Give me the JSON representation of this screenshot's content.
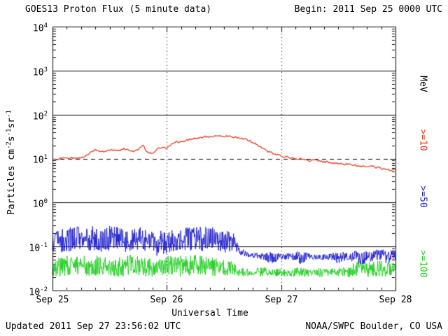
{
  "header": {
    "title": "GOES13 Proton Flux (5 minute data)",
    "begin_label": "Begin: 2011 Sep 25 0000 UTC"
  },
  "footer": {
    "updated": "Updated 2011 Sep 27 23:56:02 UTC",
    "credit": "NOAA/SWPC Boulder, CO USA"
  },
  "axes": {
    "x_label": "Universal Time",
    "y_label": {
      "p1": "Particles cm",
      "s1": "-2",
      "p2": "s",
      "s2": "-1",
      "p3": "sr",
      "s3": "-1"
    }
  },
  "right_labels": {
    "units": "MeV",
    "items": [
      ">=10",
      ">=50",
      ">=100"
    ]
  },
  "chart_data": {
    "type": "line",
    "title": "GOES13 Proton Flux (5 minute data)",
    "begin": "2011 Sep 25 0000 UTC",
    "xlabel": "Universal Time",
    "ylabel": "Particles cm-2 s-1 sr-1",
    "xlim_hours": [
      0,
      72
    ],
    "x_tick_labels": [
      "Sep 25",
      "Sep 26",
      "Sep 27",
      "Sep 28"
    ],
    "x_major_tick_hours": [
      0,
      24,
      48,
      72
    ],
    "x_minor_tick_step_hours": 3,
    "ylim": [
      0.01,
      10000
    ],
    "y_ticks": [
      {
        "base": "10",
        "sup": "4"
      },
      {
        "base": "10",
        "sup": "3"
      },
      {
        "base": "10",
        "sup": "2"
      },
      {
        "base": "10",
        "sup": "1"
      },
      {
        "base": "10",
        "sup": "0"
      },
      {
        "base": "10",
        "sup": "-1"
      },
      {
        "base": "10",
        "sup": "-2"
      }
    ],
    "y_gridlines_solid_exponents": [
      3,
      2,
      0,
      -1
    ],
    "y_gridlines_dashed_exponents": [
      1
    ],
    "vertical_gridlines_hours": [
      24,
      48
    ],
    "legend_position": "right-edge-rotated",
    "grid": "partial",
    "series": [
      {
        "name": ">=10 MeV",
        "color": "#e03a21",
        "points": [
          [
            0,
            9.5
          ],
          [
            1,
            9.8
          ],
          [
            2,
            10.2
          ],
          [
            3,
            9.9
          ],
          [
            4,
            10.3
          ],
          [
            5,
            10.0
          ],
          [
            6,
            10.4
          ],
          [
            7,
            11.5
          ],
          [
            8,
            14.0
          ],
          [
            9,
            15.5
          ],
          [
            10,
            15.0
          ],
          [
            11,
            14.5
          ],
          [
            12,
            15.5
          ],
          [
            13,
            16.0
          ],
          [
            14,
            15.2
          ],
          [
            15,
            16.5
          ],
          [
            16,
            15.8
          ],
          [
            17,
            14.8
          ],
          [
            18,
            16.0
          ],
          [
            19,
            19.5
          ],
          [
            20,
            13.5
          ],
          [
            21,
            13.0
          ],
          [
            22,
            16.5
          ],
          [
            23,
            18.0
          ],
          [
            24,
            17.0
          ],
          [
            25,
            21.0
          ],
          [
            26,
            24.5
          ],
          [
            27,
            23.5
          ],
          [
            28,
            26.0
          ],
          [
            29,
            27.5
          ],
          [
            30,
            29.0
          ],
          [
            31,
            30.5
          ],
          [
            32,
            31.5
          ],
          [
            33,
            30.5
          ],
          [
            34,
            32.0
          ],
          [
            35,
            33.0
          ],
          [
            36,
            32.5
          ],
          [
            37,
            31.5
          ],
          [
            38,
            30.5
          ],
          [
            39,
            30.0
          ],
          [
            40,
            28.5
          ],
          [
            41,
            26.5
          ],
          [
            42,
            24.0
          ],
          [
            43,
            20.5
          ],
          [
            44,
            17.5
          ],
          [
            45,
            15.0
          ],
          [
            46,
            13.5
          ],
          [
            47,
            12.5
          ],
          [
            48,
            11.5
          ],
          [
            49,
            10.8
          ],
          [
            50,
            10.2
          ],
          [
            51,
            9.8
          ],
          [
            52,
            10.0
          ],
          [
            53,
            9.4
          ],
          [
            54,
            9.0
          ],
          [
            55,
            9.3
          ],
          [
            56,
            8.7
          ],
          [
            57,
            8.4
          ],
          [
            58,
            8.2
          ],
          [
            59,
            8.0
          ],
          [
            60,
            7.7
          ],
          [
            61,
            7.4
          ],
          [
            62,
            7.6
          ],
          [
            63,
            7.2
          ],
          [
            64,
            7.0
          ],
          [
            65,
            6.7
          ],
          [
            66,
            6.5
          ],
          [
            67,
            6.8
          ],
          [
            68,
            6.3
          ],
          [
            69,
            6.0
          ],
          [
            70,
            5.7
          ],
          [
            71,
            5.4
          ],
          [
            72,
            5.9
          ]
        ]
      },
      {
        "name": ">=50 MeV",
        "color": "#2121cd",
        "envelope_step_hours": 2,
        "env_min": [
          0.08,
          0.07,
          0.08,
          0.09,
          0.08,
          0.07,
          0.08,
          0.08,
          0.07,
          0.08,
          0.07,
          0.06,
          0.07,
          0.08,
          0.08,
          0.07,
          0.08,
          0.08,
          0.07,
          0.08,
          0.06,
          0.055,
          0.05,
          0.04,
          0.05,
          0.05,
          0.04,
          0.05,
          0.05,
          0.05,
          0.04,
          0.05,
          0.04,
          0.04,
          0.05,
          0.04,
          0.05
        ],
        "env_max": [
          0.2,
          0.25,
          0.3,
          0.28,
          0.3,
          0.25,
          0.3,
          0.28,
          0.25,
          0.3,
          0.28,
          0.22,
          0.25,
          0.3,
          0.28,
          0.3,
          0.28,
          0.3,
          0.25,
          0.2,
          0.09,
          0.075,
          0.07,
          0.08,
          0.07,
          0.07,
          0.08,
          0.07,
          0.065,
          0.07,
          0.08,
          0.07,
          0.09,
          0.08,
          0.09,
          0.09,
          0.08
        ]
      },
      {
        "name": ">=100 MeV",
        "color": "#22cf22",
        "envelope_step_hours": 2,
        "env_min": [
          0.022,
          0.02,
          0.022,
          0.022,
          0.02,
          0.022,
          0.022,
          0.02,
          0.022,
          0.022,
          0.02,
          0.022,
          0.022,
          0.02,
          0.022,
          0.022,
          0.022,
          0.02,
          0.022,
          0.022,
          0.021,
          0.021,
          0.02,
          0.021,
          0.021,
          0.02,
          0.021,
          0.021,
          0.02,
          0.021,
          0.021,
          0.02,
          0.021,
          0.02,
          0.021,
          0.02,
          0.021
        ],
        "env_max": [
          0.055,
          0.06,
          0.065,
          0.06,
          0.065,
          0.06,
          0.055,
          0.06,
          0.065,
          0.06,
          0.055,
          0.05,
          0.06,
          0.065,
          0.06,
          0.065,
          0.06,
          0.055,
          0.05,
          0.045,
          0.032,
          0.03,
          0.035,
          0.03,
          0.032,
          0.03,
          0.035,
          0.03,
          0.032,
          0.03,
          0.035,
          0.032,
          0.05,
          0.045,
          0.05,
          0.048,
          0.045
        ]
      }
    ]
  }
}
